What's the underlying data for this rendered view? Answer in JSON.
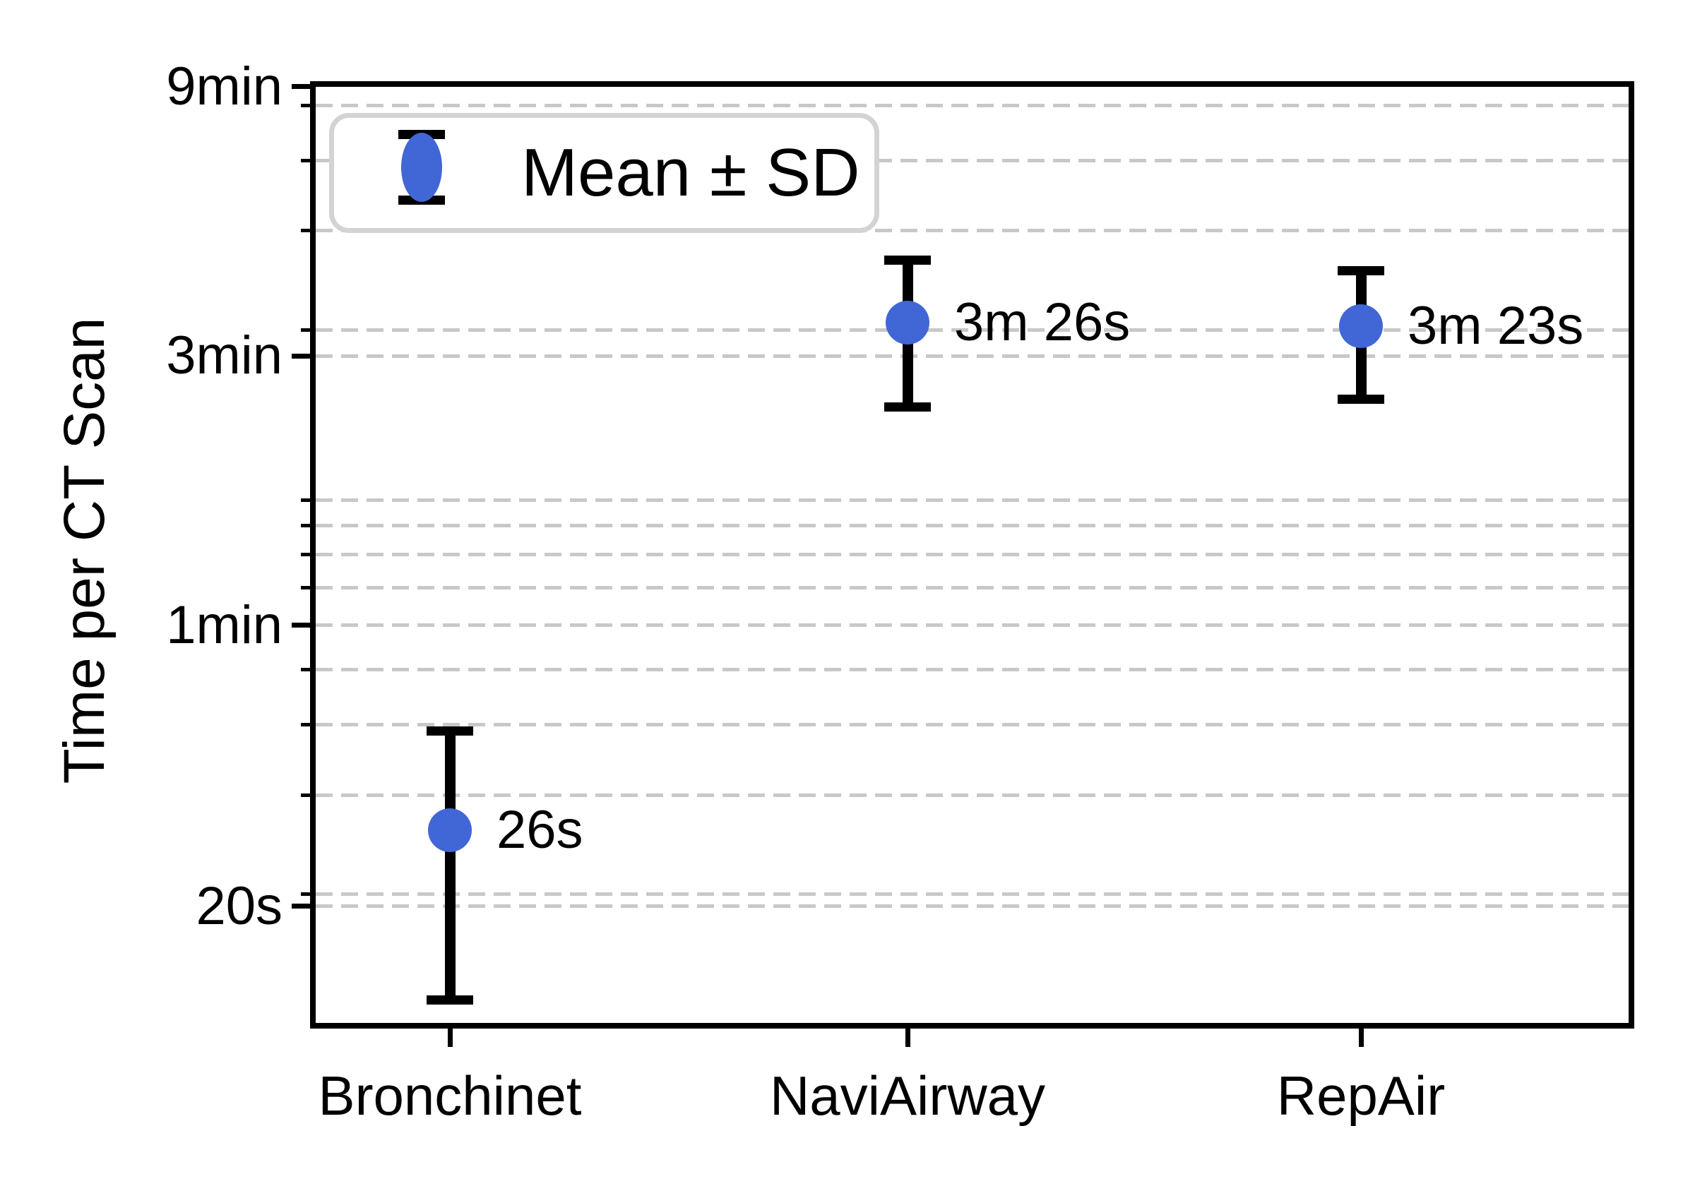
{
  "chart_data": {
    "type": "scatter",
    "subtype": "errorbar",
    "title": "",
    "ylabel": "Time per CT Scan",
    "xlabel": "",
    "categories": [
      "Bronchinet",
      "NaviAirway",
      "RepAir"
    ],
    "series": [
      {
        "name": "Mean ± SD",
        "points": [
          {
            "category": "Bronchinet",
            "mean_seconds": 26,
            "sd_seconds": 13,
            "annotation": "26s"
          },
          {
            "category": "NaviAirway",
            "mean_seconds": 206,
            "sd_seconds": 60,
            "annotation": "3m 26s"
          },
          {
            "category": "RepAir",
            "mean_seconds": 203,
            "sd_seconds": 52,
            "annotation": "3m 23s"
          }
        ]
      }
    ],
    "y_axis": {
      "scale": "log",
      "unit": "seconds",
      "ylim_seconds": [
        11.7,
        546
      ],
      "major_ticks": [
        {
          "seconds": 540,
          "label": "9min"
        },
        {
          "seconds": 180,
          "label": "3min"
        },
        {
          "seconds": 60,
          "label": "1min"
        },
        {
          "seconds": 20,
          "label": "20s"
        }
      ],
      "minor_tick_seconds": [
        500,
        400,
        300,
        200,
        100,
        90,
        80,
        70,
        50,
        40,
        30,
        20
      ],
      "grid": "dashed"
    },
    "x_axis": {
      "tick_labels": [
        "Bronchinet",
        "NaviAirway",
        "RepAir"
      ]
    },
    "legend": {
      "label": "Mean ± SD",
      "position": "upper-left"
    },
    "colors": {
      "marker": "#4166d6",
      "errorbar": "#000000",
      "grid": "#c8c8c8",
      "legend_border": "#d3d3d3",
      "text": "#000000"
    }
  }
}
